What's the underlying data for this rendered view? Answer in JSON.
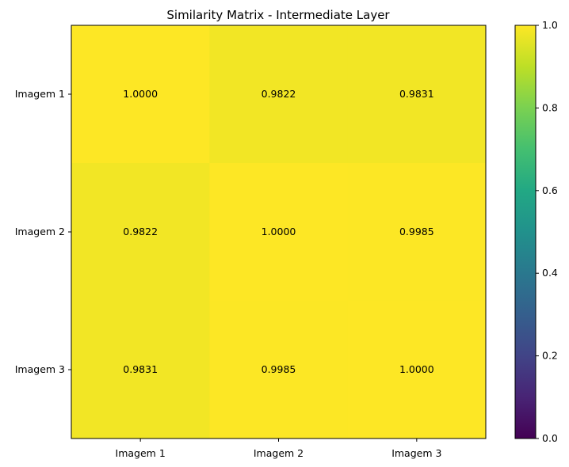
{
  "chart_data": {
    "type": "heatmap",
    "title": "Similarity Matrix - Intermediate Layer",
    "x_categories": [
      "Imagem 1",
      "Imagem 2",
      "Imagem 3"
    ],
    "y_categories": [
      "Imagem 1",
      "Imagem 2",
      "Imagem 3"
    ],
    "values": [
      [
        1.0,
        0.9822,
        0.9831
      ],
      [
        0.9822,
        1.0,
        0.9985
      ],
      [
        0.9831,
        0.9985,
        1.0
      ]
    ],
    "value_labels": [
      [
        "1.0000",
        "0.9822",
        "0.9831"
      ],
      [
        "0.9822",
        "1.0000",
        "0.9985"
      ],
      [
        "0.9831",
        "0.9985",
        "1.0000"
      ]
    ],
    "colorbar": {
      "range": [
        0.0,
        1.0
      ],
      "ticks": [
        0.0,
        0.2,
        0.4,
        0.6,
        0.8,
        1.0
      ],
      "tick_labels": [
        "0.0",
        "0.2",
        "0.4",
        "0.6",
        "0.8",
        "1.0"
      ],
      "colormap": "viridis"
    },
    "xlabel": "",
    "ylabel": ""
  }
}
